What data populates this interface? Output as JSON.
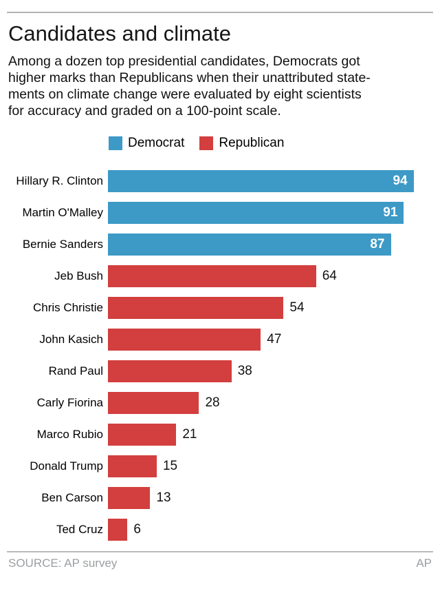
{
  "header": {
    "title": "Candidates and climate",
    "subtitle_lines": [
      "Among a dozen top presidential candidates, Democrats got",
      "higher marks than Republicans when their unattributed state-",
      "ments on climate change were evaluated by eight scientists",
      "for accuracy and graded on a 100-point scale."
    ]
  },
  "legend": {
    "items": [
      {
        "label": "Democrat",
        "color": "#3d99c6"
      },
      {
        "label": "Republican",
        "color": "#d23f3e"
      }
    ]
  },
  "chart_data": {
    "type": "bar",
    "orientation": "horizontal",
    "title": "Candidates and climate",
    "xlabel": "",
    "ylabel": "",
    "xlim": [
      0,
      100
    ],
    "grid": false,
    "legend_position": "top",
    "categories": [
      "Hillary R. Clinton",
      "Martin O'Malley",
      "Bernie Sanders",
      "Jeb Bush",
      "Chris Christie",
      "John Kasich",
      "Rand Paul",
      "Carly Fiorina",
      "Marco Rubio",
      "Donald Trump",
      "Ben Carson",
      "Ted Cruz"
    ],
    "values": [
      94,
      91,
      87,
      64,
      54,
      47,
      38,
      28,
      21,
      15,
      13,
      6
    ],
    "parties": [
      "Democrat",
      "Democrat",
      "Democrat",
      "Republican",
      "Republican",
      "Republican",
      "Republican",
      "Republican",
      "Republican",
      "Republican",
      "Republican",
      "Republican"
    ],
    "series_colors": {
      "Democrat": "#3d99c6",
      "Republican": "#d23f3e"
    },
    "value_label_positions": [
      "inside",
      "inside",
      "inside",
      "outside",
      "outside",
      "outside",
      "outside",
      "outside",
      "outside",
      "outside",
      "outside",
      "outside"
    ]
  },
  "footer": {
    "source": "SOURCE: AP survey",
    "credit": "AP"
  }
}
